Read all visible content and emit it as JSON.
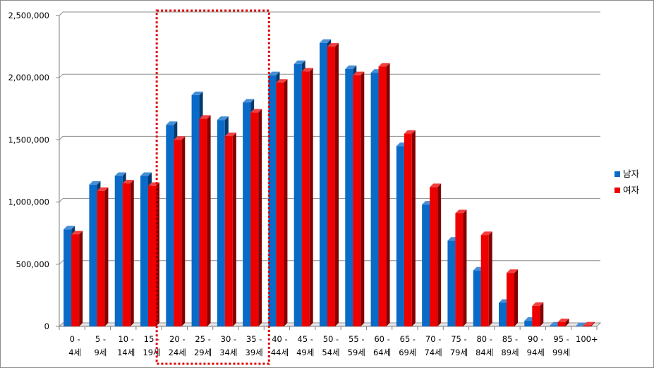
{
  "chart_data": {
    "type": "bar",
    "title": "",
    "xlabel": "",
    "ylabel": "",
    "ylim": [
      0,
      2500000
    ],
    "ytick_values": [
      0,
      500000,
      1000000,
      1500000,
      2000000,
      2500000
    ],
    "ytick_labels": [
      "0",
      "500,000",
      "1,000,000",
      "1,500,000",
      "2,000,000",
      "2,500,000"
    ],
    "grid": true,
    "legend_position": "right",
    "highlight_dashed_box": {
      "from_index": 4,
      "to_index": 7,
      "color": "#e00000"
    },
    "categories": [
      [
        "0 -",
        "4세"
      ],
      [
        "5 -",
        "9세"
      ],
      [
        "10 -",
        "14세"
      ],
      [
        "15 -",
        "19세"
      ],
      [
        "20 -",
        "24세"
      ],
      [
        "25 -",
        "29세"
      ],
      [
        "30 -",
        "34세"
      ],
      [
        "35 -",
        "39세"
      ],
      [
        "40 -",
        "44세"
      ],
      [
        "45 -",
        "49세"
      ],
      [
        "50 -",
        "54세"
      ],
      [
        "55 -",
        "59세"
      ],
      [
        "60 -",
        "64세"
      ],
      [
        "65 -",
        "69세"
      ],
      [
        "70 -",
        "74세"
      ],
      [
        "75 -",
        "79세"
      ],
      [
        "80 -",
        "84세"
      ],
      [
        "85 -",
        "89세"
      ],
      [
        "90 -",
        "94세"
      ],
      [
        "95 -",
        "99세"
      ],
      [
        "100+"
      ]
    ],
    "series": [
      {
        "name": "남자",
        "color": "#0a6ac8",
        "values": [
          780000,
          1140000,
          1210000,
          1210000,
          1620000,
          1860000,
          1660000,
          1800000,
          2020000,
          2110000,
          2280000,
          2070000,
          2040000,
          1450000,
          980000,
          690000,
          450000,
          190000,
          45000,
          8000,
          2000
        ]
      },
      {
        "name": "여자",
        "color": "#ee0000",
        "values": [
          740000,
          1090000,
          1150000,
          1130000,
          1500000,
          1670000,
          1530000,
          1720000,
          1960000,
          2050000,
          2250000,
          2020000,
          2090000,
          1550000,
          1120000,
          910000,
          735000,
          430000,
          165000,
          35000,
          8000
        ]
      }
    ]
  }
}
